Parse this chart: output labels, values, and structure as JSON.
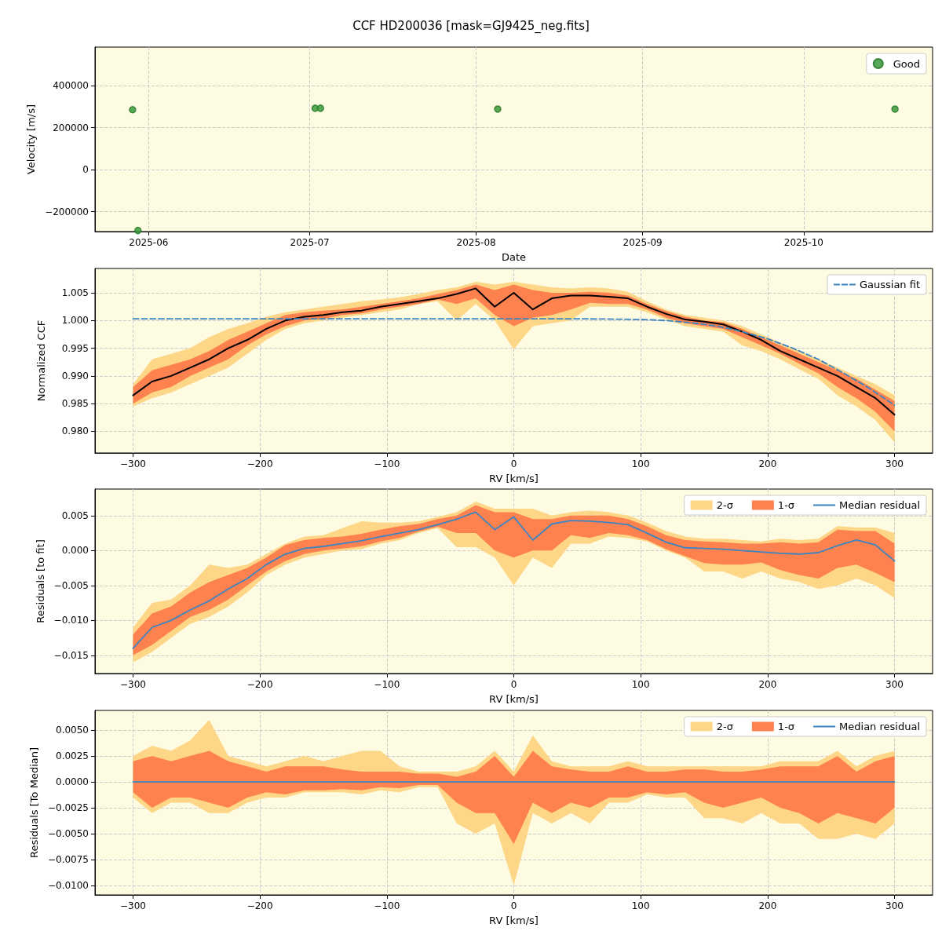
{
  "chart_data": [
    {
      "type": "scatter",
      "title": "CCF HD200036 [mask=GJ9425_neg.fits]",
      "xlabel": "Date",
      "ylabel": "Velocity [m/s]",
      "x": [
        "2025-05-29",
        "2025-05-30",
        "2025-07-02",
        "2025-07-03",
        "2025-08-05",
        "2025-10-18"
      ],
      "series": [
        {
          "name": "Good",
          "color": "#3a9a3a",
          "values": [
            285000,
            -290000,
            292000,
            292000,
            288000,
            288000
          ]
        }
      ],
      "marker": "circle",
      "xlim": [
        "2025-05-22",
        "2025-10-25"
      ],
      "xticks": [
        {
          "value": "2025-06-01",
          "label": "2025-06"
        },
        {
          "value": "2025-07-01",
          "label": "2025-07"
        },
        {
          "value": "2025-08-01",
          "label": "2025-08"
        },
        {
          "value": "2025-09-01",
          "label": "2025-09"
        },
        {
          "value": "2025-10-01",
          "label": "2025-10"
        }
      ],
      "ylim": [
        -295000,
        583000
      ],
      "yticks": [
        {
          "value": -200000,
          "label": "−200000"
        },
        0,
        200000,
        400000
      ],
      "grid": true,
      "legend": "top right"
    },
    {
      "type": "line",
      "xlabel": "RV [km/s]",
      "ylabel": "Normalized CCF",
      "x": [
        -300,
        -285,
        -270,
        -255,
        -240,
        -225,
        -210,
        -195,
        -180,
        -165,
        -150,
        -135,
        -120,
        -105,
        -90,
        -75,
        -60,
        -45,
        -30,
        -15,
        0,
        15,
        30,
        45,
        60,
        75,
        90,
        105,
        120,
        135,
        150,
        165,
        180,
        195,
        210,
        225,
        240,
        255,
        270,
        285,
        300
      ],
      "series": [
        {
          "type": "area",
          "color": "#fed687",
          "values": [
            null,
            null,
            null,
            null,
            null,
            null,
            null,
            null,
            null,
            null,
            null,
            null,
            null,
            null,
            null,
            null,
            null,
            null,
            null,
            null,
            null,
            null,
            null,
            null,
            null,
            null,
            null,
            null,
            null,
            null,
            null,
            null,
            null,
            null,
            null,
            null,
            null,
            null,
            null,
            null,
            null
          ],
          "lower": [
            0.9845,
            0.986,
            0.987,
            0.9885,
            0.99,
            0.9915,
            0.994,
            0.9965,
            0.9985,
            0.9995,
            1.0,
            1.0005,
            1.001,
            1.0015,
            1.002,
            1.003,
            1.0035,
            1.0,
            1.003,
            1.0,
            0.9948,
            0.999,
            0.9995,
            1.0,
            1.0025,
            1.0025,
            1.0025,
            1.0015,
            1.0002,
            0.999,
            0.9985,
            0.998,
            0.9955,
            0.9945,
            0.993,
            0.9912,
            0.9895,
            0.9865,
            0.9845,
            0.982,
            0.978
          ],
          "upper": [
            0.9885,
            0.993,
            0.994,
            0.995,
            0.997,
            0.9985,
            0.9995,
            1.0007,
            1.0015,
            1.002,
            1.0025,
            1.003,
            1.0035,
            1.0038,
            1.0042,
            1.0048,
            1.0055,
            1.006,
            1.007,
            1.0065,
            1.007,
            1.0065,
            1.006,
            1.0058,
            1.006,
            1.0058,
            1.0052,
            1.0035,
            1.002,
            1.001,
            1.0005,
            1.0,
            0.999,
            0.9975,
            0.996,
            0.9945,
            0.993,
            0.9915,
            0.99,
            0.9885,
            0.9865
          ]
        },
        {
          "type": "area",
          "color": "#fe8150",
          "values": [
            null,
            null,
            null,
            null,
            null,
            null,
            null,
            null,
            null,
            null,
            null,
            null,
            null,
            null,
            null,
            null,
            null,
            null,
            null,
            null,
            null,
            null,
            null,
            null,
            null,
            null,
            null,
            null,
            null,
            null,
            null,
            null,
            null,
            null,
            null,
            null,
            null,
            null,
            null,
            null,
            null
          ],
          "lower": [
            0.985,
            0.987,
            0.988,
            0.99,
            0.9915,
            0.993,
            0.9955,
            0.9975,
            0.999,
            1.0,
            1.0003,
            1.001,
            1.0013,
            1.002,
            1.0025,
            1.003,
            1.0038,
            1.003,
            1.004,
            1.001,
            0.999,
            1.0005,
            1.001,
            1.002,
            1.0032,
            1.003,
            1.003,
            1.002,
            1.0005,
            0.9995,
            0.999,
            0.9985,
            0.997,
            0.9955,
            0.994,
            0.9922,
            0.9905,
            0.988,
            0.986,
            0.9835,
            0.98
          ],
          "upper": [
            0.988,
            0.991,
            0.992,
            0.993,
            0.9945,
            0.9965,
            0.998,
            0.9995,
            1.001,
            1.0015,
            1.0018,
            1.002,
            1.0025,
            1.003,
            1.0035,
            1.004,
            1.0048,
            1.0055,
            1.0065,
            1.0055,
            1.0065,
            1.0055,
            1.005,
            1.005,
            1.0052,
            1.005,
            1.0045,
            1.003,
            1.0017,
            1.0007,
            1.0,
            0.9997,
            0.9985,
            0.997,
            0.9955,
            0.994,
            0.9925,
            0.991,
            0.9895,
            0.9875,
            0.9855
          ]
        },
        {
          "color": "#000000",
          "values": [
            0.9865,
            0.989,
            0.99,
            0.9915,
            0.993,
            0.995,
            0.9965,
            0.9985,
            1.0,
            1.0007,
            1.001,
            1.0015,
            1.0018,
            1.0025,
            1.003,
            1.0035,
            1.004,
            1.0048,
            1.0058,
            1.0025,
            1.005,
            1.002,
            1.004,
            1.0045,
            1.0045,
            1.0043,
            1.004,
            1.0025,
            1.0012,
            1.0002,
            0.9998,
            0.9993,
            0.998,
            0.9965,
            0.9945,
            0.993,
            0.9915,
            0.99,
            0.988,
            0.986,
            0.983
          ]
        },
        {
          "name": "Gaussian fit",
          "color": "#3d85c0",
          "line_style": "dashed",
          "x": [
            -300,
            -200,
            -100,
            0,
            60,
            100,
            120,
            140,
            160,
            180,
            200,
            220,
            240,
            260,
            280,
            300
          ],
          "values": [
            1.0003,
            1.0003,
            1.0003,
            1.0003,
            1.0003,
            1.0002,
            1.0,
            0.9996,
            0.999,
            0.998,
            0.9967,
            0.995,
            0.993,
            0.9905,
            0.9878,
            0.9847
          ]
        }
      ],
      "xlim": [
        -330,
        330
      ],
      "xticks": [
        {
          "value": -300,
          "label": "−300"
        },
        {
          "value": -200,
          "label": "−200"
        },
        {
          "value": -100,
          "label": "−100"
        },
        0,
        100,
        200,
        300
      ],
      "ylim": [
        0.9761,
        1.0094
      ],
      "yticks": [
        {
          "value": 0.98,
          "label": "0.980"
        },
        {
          "value": 0.985,
          "label": "0.985"
        },
        {
          "value": 0.99,
          "label": "0.990"
        },
        {
          "value": 0.995,
          "label": "0.995"
        },
        {
          "value": 1.0,
          "label": "1.000"
        },
        {
          "value": 1.005,
          "label": "1.005"
        }
      ],
      "grid": true,
      "legend": "top right"
    },
    {
      "type": "line",
      "xlabel": "RV [km/s]",
      "ylabel": "Residuals [to fit]",
      "x": [
        -300,
        -285,
        -270,
        -255,
        -240,
        -225,
        -210,
        -195,
        -180,
        -165,
        -150,
        -135,
        -120,
        -105,
        -90,
        -75,
        -60,
        -45,
        -30,
        -15,
        0,
        15,
        30,
        45,
        60,
        75,
        90,
        105,
        120,
        135,
        150,
        165,
        180,
        195,
        210,
        225,
        240,
        255,
        270,
        285,
        300
      ],
      "series": [
        {
          "type": "area",
          "name": "2-σ",
          "color": "#fed687",
          "values": [
            null,
            null,
            null,
            null,
            null,
            null,
            null,
            null,
            null,
            null,
            null,
            null,
            null,
            null,
            null,
            null,
            null,
            null,
            null,
            null,
            null,
            null,
            null,
            null,
            null,
            null,
            null,
            null,
            null,
            null,
            null,
            null,
            null,
            null,
            null,
            null,
            null,
            null,
            null,
            null,
            null
          ],
          "lower": [
            -0.016,
            -0.0145,
            -0.0125,
            -0.0105,
            -0.0095,
            -0.008,
            -0.006,
            -0.0035,
            -0.002,
            -0.001,
            -0.0005,
            0.0,
            0.0002,
            0.001,
            0.0015,
            0.0025,
            0.0032,
            0.0005,
            0.0005,
            -0.001,
            -0.005,
            -0.001,
            -0.0025,
            0.001,
            0.001,
            0.002,
            0.0018,
            0.0013,
            0.0,
            -0.001,
            -0.003,
            -0.003,
            -0.004,
            -0.003,
            -0.004,
            -0.0045,
            -0.0055,
            -0.005,
            -0.004,
            -0.005,
            -0.0068
          ],
          "upper": [
            -0.011,
            -0.0075,
            -0.007,
            -0.005,
            -0.002,
            -0.0025,
            -0.002,
            -0.0005,
            0.001,
            0.002,
            0.0022,
            0.0032,
            0.0042,
            0.004,
            0.004,
            0.0042,
            0.0048,
            0.0055,
            0.007,
            0.006,
            0.006,
            0.006,
            0.005,
            0.0055,
            0.0057,
            0.0055,
            0.005,
            0.004,
            0.0028,
            0.002,
            0.0017,
            0.0017,
            0.0015,
            0.0013,
            0.0017,
            0.0015,
            0.0017,
            0.0035,
            0.0033,
            0.0033,
            0.0025
          ]
        },
        {
          "type": "area",
          "name": "1-σ",
          "color": "#fe8150",
          "values": [
            null,
            null,
            null,
            null,
            null,
            null,
            null,
            null,
            null,
            null,
            null,
            null,
            null,
            null,
            null,
            null,
            null,
            null,
            null,
            null,
            null,
            null,
            null,
            null,
            null,
            null,
            null,
            null,
            null,
            null,
            null,
            null,
            null,
            null,
            null,
            null,
            null,
            null,
            null,
            null,
            null
          ],
          "lower": [
            -0.015,
            -0.0135,
            -0.0115,
            -0.0095,
            -0.0085,
            -0.007,
            -0.005,
            -0.003,
            -0.0015,
            -0.0005,
            0.0,
            0.0003,
            0.0006,
            0.0013,
            0.0018,
            0.0027,
            0.0034,
            0.0025,
            0.0025,
            0.0,
            -0.001,
            0.0,
            0.0,
            0.0022,
            0.0018,
            0.0025,
            0.0022,
            0.0015,
            0.0002,
            -0.0008,
            -0.0018,
            -0.002,
            -0.002,
            -0.0017,
            -0.0028,
            -0.0035,
            -0.004,
            -0.0025,
            -0.002,
            -0.0032,
            -0.0045
          ],
          "upper": [
            -0.012,
            -0.009,
            -0.008,
            -0.006,
            -0.0045,
            -0.0035,
            -0.0025,
            -0.001,
            0.0008,
            0.0015,
            0.0018,
            0.002,
            0.0024,
            0.003,
            0.0035,
            0.0038,
            0.0045,
            0.005,
            0.0065,
            0.0055,
            0.0055,
            0.0045,
            0.0045,
            0.005,
            0.005,
            0.005,
            0.0045,
            0.0035,
            0.0022,
            0.0015,
            0.0013,
            0.0012,
            0.001,
            0.001,
            0.0012,
            0.001,
            0.0012,
            0.003,
            0.0028,
            0.0028,
            0.001
          ]
        },
        {
          "name": "Median residual",
          "color": "#3d85c0",
          "values": [
            -0.014,
            -0.011,
            -0.01,
            -0.0085,
            -0.0072,
            -0.0055,
            -0.004,
            -0.002,
            -0.0005,
            0.0003,
            0.0006,
            0.001,
            0.0014,
            0.002,
            0.0025,
            0.003,
            0.0037,
            0.0045,
            0.0055,
            0.003,
            0.0048,
            0.0015,
            0.0038,
            0.0043,
            0.0042,
            0.004,
            0.0037,
            0.0025,
            0.0012,
            0.0004,
            0.0003,
            0.0002,
            0.0,
            -0.0002,
            -0.0004,
            -0.0005,
            -0.0003,
            0.0007,
            0.0015,
            0.0008,
            -0.0015
          ]
        }
      ],
      "xlim": [
        -330,
        330
      ],
      "xticks": [
        {
          "value": -300,
          "label": "−300"
        },
        {
          "value": -200,
          "label": "−200"
        },
        {
          "value": -100,
          "label": "−100"
        },
        0,
        100,
        200,
        300
      ],
      "ylim": [
        -0.0176,
        0.0088
      ],
      "yticks": [
        {
          "value": -0.015,
          "label": "−0.015"
        },
        {
          "value": -0.01,
          "label": "−0.010"
        },
        {
          "value": -0.005,
          "label": "−0.005"
        },
        {
          "value": 0,
          "label": "0.000"
        },
        {
          "value": 0.005,
          "label": "0.005"
        }
      ],
      "grid": true,
      "legend": "top right"
    },
    {
      "type": "line",
      "xlabel": "RV [km/s]",
      "ylabel": "Residuals [To Median]",
      "x": [
        -300,
        -285,
        -270,
        -255,
        -240,
        -225,
        -210,
        -195,
        -180,
        -165,
        -150,
        -135,
        -120,
        -105,
        -90,
        -75,
        -60,
        -45,
        -30,
        -15,
        0,
        15,
        30,
        45,
        60,
        75,
        90,
        105,
        120,
        135,
        150,
        165,
        180,
        195,
        210,
        225,
        240,
        255,
        270,
        285,
        300
      ],
      "series": [
        {
          "type": "area",
          "name": "2-σ",
          "color": "#fed687",
          "values": [
            null,
            null,
            null,
            null,
            null,
            null,
            null,
            null,
            null,
            null,
            null,
            null,
            null,
            null,
            null,
            null,
            null,
            null,
            null,
            null,
            null,
            null,
            null,
            null,
            null,
            null,
            null,
            null,
            null,
            null,
            null,
            null,
            null,
            null,
            null,
            null,
            null,
            null,
            null,
            null,
            null
          ],
          "lower": [
            -0.0015,
            -0.003,
            -0.002,
            -0.002,
            -0.003,
            -0.003,
            -0.002,
            -0.0015,
            -0.0015,
            -0.001,
            -0.001,
            -0.001,
            -0.0012,
            -0.0008,
            -0.001,
            -0.0005,
            -0.0005,
            -0.004,
            -0.005,
            -0.004,
            -0.01,
            -0.003,
            -0.004,
            -0.003,
            -0.004,
            -0.002,
            -0.002,
            -0.0012,
            -0.0015,
            -0.0015,
            -0.0035,
            -0.0035,
            -0.004,
            -0.003,
            -0.004,
            -0.004,
            -0.0055,
            -0.0055,
            -0.005,
            -0.0055,
            -0.004
          ],
          "upper": [
            0.0025,
            0.0035,
            0.003,
            0.004,
            0.006,
            0.0025,
            0.002,
            0.0015,
            0.002,
            0.0025,
            0.002,
            0.0025,
            0.003,
            0.003,
            0.0015,
            0.001,
            0.001,
            0.001,
            0.0015,
            0.003,
            0.001,
            0.0045,
            0.002,
            0.0015,
            0.0015,
            0.0015,
            0.002,
            0.0015,
            0.0015,
            0.0015,
            0.0015,
            0.0015,
            0.0015,
            0.0015,
            0.002,
            0.002,
            0.002,
            0.003,
            0.0015,
            0.0025,
            0.003
          ]
        },
        {
          "type": "area",
          "name": "1-σ",
          "color": "#fe8150",
          "values": [
            null,
            null,
            null,
            null,
            null,
            null,
            null,
            null,
            null,
            null,
            null,
            null,
            null,
            null,
            null,
            null,
            null,
            null,
            null,
            null,
            null,
            null,
            null,
            null,
            null,
            null,
            null,
            null,
            null,
            null,
            null,
            null,
            null,
            null,
            null,
            null,
            null,
            null,
            null,
            null,
            null
          ],
          "lower": [
            -0.001,
            -0.0025,
            -0.0015,
            -0.0015,
            -0.002,
            -0.0025,
            -0.0015,
            -0.001,
            -0.0012,
            -0.0008,
            -0.0008,
            -0.0007,
            -0.0008,
            -0.0005,
            -0.0006,
            -0.0003,
            -0.0003,
            -0.002,
            -0.003,
            -0.003,
            -0.006,
            -0.002,
            -0.003,
            -0.002,
            -0.0025,
            -0.0015,
            -0.0015,
            -0.001,
            -0.0012,
            -0.001,
            -0.002,
            -0.0025,
            -0.002,
            -0.0015,
            -0.0025,
            -0.003,
            -0.004,
            -0.003,
            -0.0035,
            -0.004,
            -0.0025
          ],
          "upper": [
            0.002,
            0.0025,
            0.002,
            0.0025,
            0.003,
            0.002,
            0.0015,
            0.001,
            0.0015,
            0.0015,
            0.0015,
            0.0012,
            0.001,
            0.001,
            0.001,
            0.0008,
            0.0008,
            0.0005,
            0.001,
            0.0025,
            0.0005,
            0.003,
            0.0015,
            0.0012,
            0.001,
            0.001,
            0.0015,
            0.001,
            0.001,
            0.0012,
            0.0012,
            0.001,
            0.001,
            0.0012,
            0.0015,
            0.0015,
            0.0015,
            0.0025,
            0.001,
            0.002,
            0.0025
          ]
        },
        {
          "name": "Median residual",
          "color": "#3d85c0",
          "values": [
            0,
            0,
            0,
            0,
            0,
            0,
            0,
            0,
            0,
            0,
            0,
            0,
            0,
            0,
            0,
            0,
            0,
            0,
            0,
            0,
            0,
            0,
            0,
            0,
            0,
            0,
            0,
            0,
            0,
            0,
            0,
            0,
            0,
            0,
            0,
            0,
            0,
            0,
            0,
            0,
            0
          ]
        }
      ],
      "xlim": [
        -330,
        330
      ],
      "xticks": [
        {
          "value": -300,
          "label": "−300"
        },
        {
          "value": -200,
          "label": "−200"
        },
        {
          "value": -100,
          "label": "−100"
        },
        0,
        100,
        200,
        300
      ],
      "ylim": [
        -0.0109,
        0.0069
      ],
      "yticks": [
        {
          "value": -0.01,
          "label": "−0.0100"
        },
        {
          "value": -0.0075,
          "label": "−0.0075"
        },
        {
          "value": -0.005,
          "label": "−0.0050"
        },
        {
          "value": -0.0025,
          "label": "−0.0025"
        },
        {
          "value": 0,
          "label": "0.0000"
        },
        {
          "value": 0.0025,
          "label": "0.0025"
        },
        {
          "value": 0.005,
          "label": "0.0050"
        }
      ],
      "grid": true,
      "legend": "top right"
    }
  ]
}
